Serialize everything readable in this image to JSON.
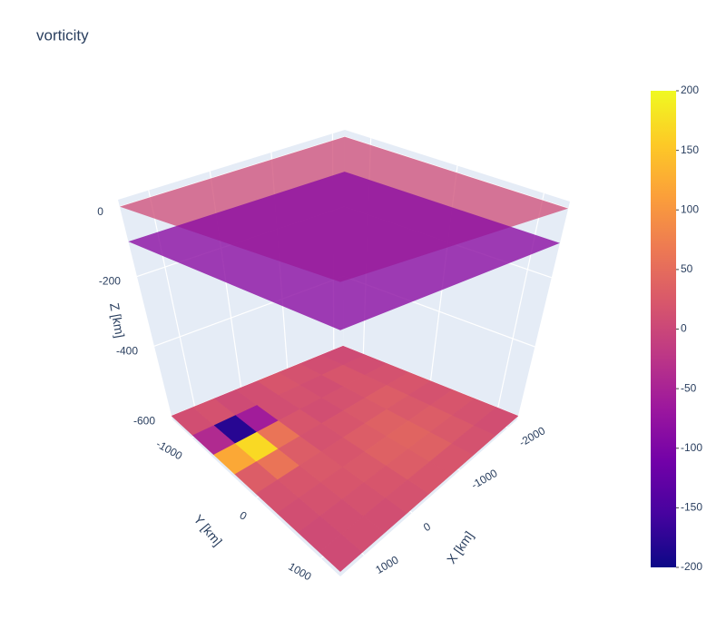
{
  "chart_data": {
    "type": "surface3d",
    "title": "vorticity",
    "xaxis_title": "X [km]",
    "yaxis_title": "Y [km]",
    "zaxis_title": "Z [km]",
    "xlim": [
      -2200,
      1500
    ],
    "xticks": [
      -2000,
      -1000,
      0,
      1000
    ],
    "ylim": [
      -1300,
      1300
    ],
    "yticks": [
      -1000,
      0,
      1000
    ],
    "zlim": [
      -610,
      20
    ],
    "zticks": [
      0,
      -200,
      -400,
      -600
    ],
    "colorscale": [
      [
        0,
        "#0d0887"
      ],
      [
        0.111,
        "#46039f"
      ],
      [
        0.222,
        "#7201a8"
      ],
      [
        0.333,
        "#9c179e"
      ],
      [
        0.444,
        "#bd3786"
      ],
      [
        0.556,
        "#d8576b"
      ],
      [
        0.667,
        "#ed7953"
      ],
      [
        0.778,
        "#fb9f3a"
      ],
      [
        0.889,
        "#fdca26"
      ],
      [
        1,
        "#f0f921"
      ]
    ],
    "cmin": -200,
    "cmax": 200,
    "colorbar_ticks": [
      200,
      150,
      100,
      50,
      0,
      -50,
      -100,
      -150,
      -200
    ],
    "slices": [
      {
        "z": 0,
        "value": 5
      },
      {
        "z": -100,
        "value": -85
      },
      {
        "z": -600,
        "field": [
          [
            10,
            15,
            5,
            10,
            20,
            15,
            10,
            5
          ],
          [
            -40,
            -180,
            -60,
            10,
            15,
            10,
            20,
            10
          ],
          [
            120,
            170,
            60,
            20,
            10,
            15,
            20,
            15
          ],
          [
            30,
            60,
            30,
            15,
            20,
            25,
            30,
            20
          ],
          [
            15,
            20,
            25,
            20,
            30,
            35,
            25,
            15
          ],
          [
            10,
            15,
            20,
            25,
            35,
            40,
            30,
            20
          ],
          [
            5,
            10,
            15,
            20,
            30,
            35,
            25,
            15
          ],
          [
            5,
            10,
            10,
            15,
            20,
            20,
            15,
            10
          ]
        ]
      }
    ]
  }
}
